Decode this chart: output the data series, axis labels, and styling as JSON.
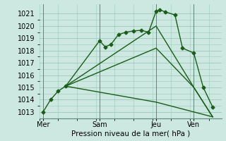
{
  "title": "Pression niveau de la mer( hPa )",
  "bg_color": "#cce8e0",
  "grid_color": "#9dc8ba",
  "line_color": "#1a5c1a",
  "ylim": [
    1012.5,
    1021.8
  ],
  "yticks": [
    1013,
    1014,
    1015,
    1016,
    1017,
    1018,
    1019,
    1020,
    1021
  ],
  "day_labels": [
    "Mer",
    "Sam",
    "Jeu",
    "Ven"
  ],
  "day_positions": [
    0,
    30,
    60,
    80
  ],
  "vline_positions": [
    0,
    30,
    60,
    80
  ],
  "xlim": [
    -2,
    95
  ],
  "series": [
    {
      "x": [
        0,
        4,
        8,
        12,
        30,
        33,
        36,
        40,
        44,
        48,
        52,
        56,
        60,
        62,
        65,
        70,
        74,
        80,
        85,
        90
      ],
      "y": [
        1013.0,
        1014.0,
        1014.7,
        1015.1,
        1018.8,
        1018.3,
        1018.5,
        1019.3,
        1019.5,
        1019.6,
        1019.65,
        1019.5,
        1021.2,
        1021.3,
        1021.15,
        1020.9,
        1018.2,
        1017.8,
        1015.0,
        1013.4
      ],
      "marker": "D",
      "markersize": 2.5,
      "linestyle": "-",
      "linewidth": 1.0
    },
    {
      "x": [
        12,
        60,
        80,
        90
      ],
      "y": [
        1015.1,
        1020.0,
        1015.0,
        1012.6
      ],
      "marker": null,
      "markersize": 0,
      "linestyle": "-",
      "linewidth": 1.0
    },
    {
      "x": [
        12,
        60,
        80,
        90
      ],
      "y": [
        1015.1,
        1018.2,
        1015.0,
        1012.6
      ],
      "marker": null,
      "markersize": 0,
      "linestyle": "-",
      "linewidth": 1.0
    },
    {
      "x": [
        12,
        60,
        80,
        90
      ],
      "y": [
        1015.1,
        1013.8,
        1013.0,
        1012.6
      ],
      "marker": null,
      "markersize": 0,
      "linestyle": "-",
      "linewidth": 1.0
    }
  ]
}
